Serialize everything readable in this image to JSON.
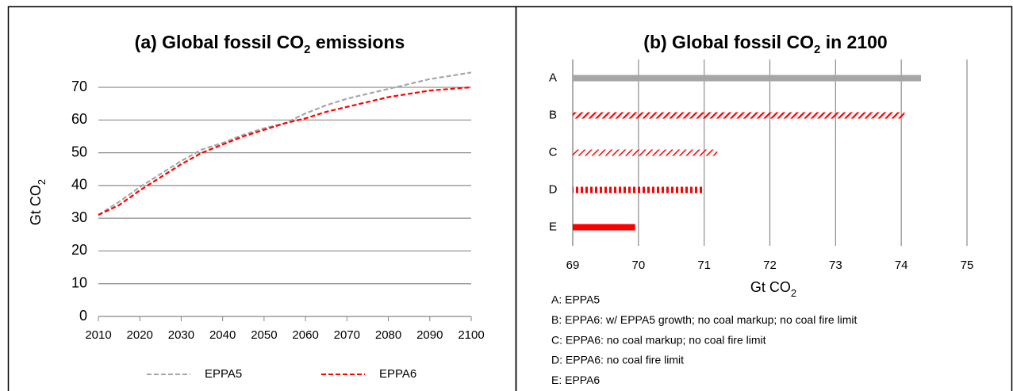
{
  "chart_data": [
    {
      "type": "line",
      "title": [
        "(a) Global fossil CO",
        "2",
        "  emissions"
      ],
      "y_label": [
        "Gt CO",
        "2"
      ],
      "x": [
        2010,
        2015,
        2020,
        2025,
        2030,
        2035,
        2040,
        2045,
        2050,
        2055,
        2060,
        2065,
        2070,
        2075,
        2080,
        2085,
        2090,
        2095,
        2100
      ],
      "series": [
        {
          "name": "EPPA5",
          "color": "#a6a6a6",
          "values": [
            31,
            35,
            39.5,
            43.5,
            47.5,
            51,
            53,
            55.5,
            57.5,
            59,
            62,
            64.5,
            66.5,
            68,
            69.5,
            71,
            72.5,
            73.5,
            74.5
          ]
        },
        {
          "name": "EPPA6",
          "color": "#ff0000",
          "values": [
            31,
            34,
            38.5,
            42.5,
            46.5,
            50,
            52.5,
            55,
            57,
            59,
            60.5,
            62.5,
            64,
            65.5,
            67,
            68,
            69,
            69.5,
            70
          ]
        }
      ],
      "xlim": [
        2010,
        2100
      ],
      "xticks": [
        2010,
        2020,
        2030,
        2040,
        2050,
        2060,
        2070,
        2080,
        2090,
        2100
      ],
      "ylim": [
        0,
        75
      ],
      "yticks": [
        0,
        10,
        20,
        30,
        40,
        50,
        60,
        70
      ],
      "grid": true,
      "legend": "bottom"
    },
    {
      "type": "bar",
      "orientation": "horizontal",
      "title": [
        "(b) Global fossil CO",
        "2",
        " in 2100"
      ],
      "x_label": [
        "Gt CO",
        "2"
      ],
      "categories": [
        "A",
        "B",
        "C",
        "D",
        "E"
      ],
      "values": [
        74.3,
        74.05,
        71.2,
        70.97,
        69.95
      ],
      "colors": [
        "#a6a6a6",
        "#ff0000",
        "#ff0000",
        "#ff0000",
        "#ff0000"
      ],
      "patterns": [
        "solid",
        "diagonal",
        "diagonal-light",
        "vertical",
        "solid"
      ],
      "xlim": [
        69,
        75
      ],
      "xticks": [
        69,
        70,
        71,
        72,
        73,
        74,
        75
      ],
      "grid": true,
      "notes": [
        "A: EPPA5",
        "B: EPPA6: w/ EPPA5 growth; no coal markup; no coal fire limit",
        "C: EPPA6: no coal markup; no coal fire limit",
        "D: EPPA6: no coal fire limit",
        "E: EPPA6"
      ]
    }
  ]
}
